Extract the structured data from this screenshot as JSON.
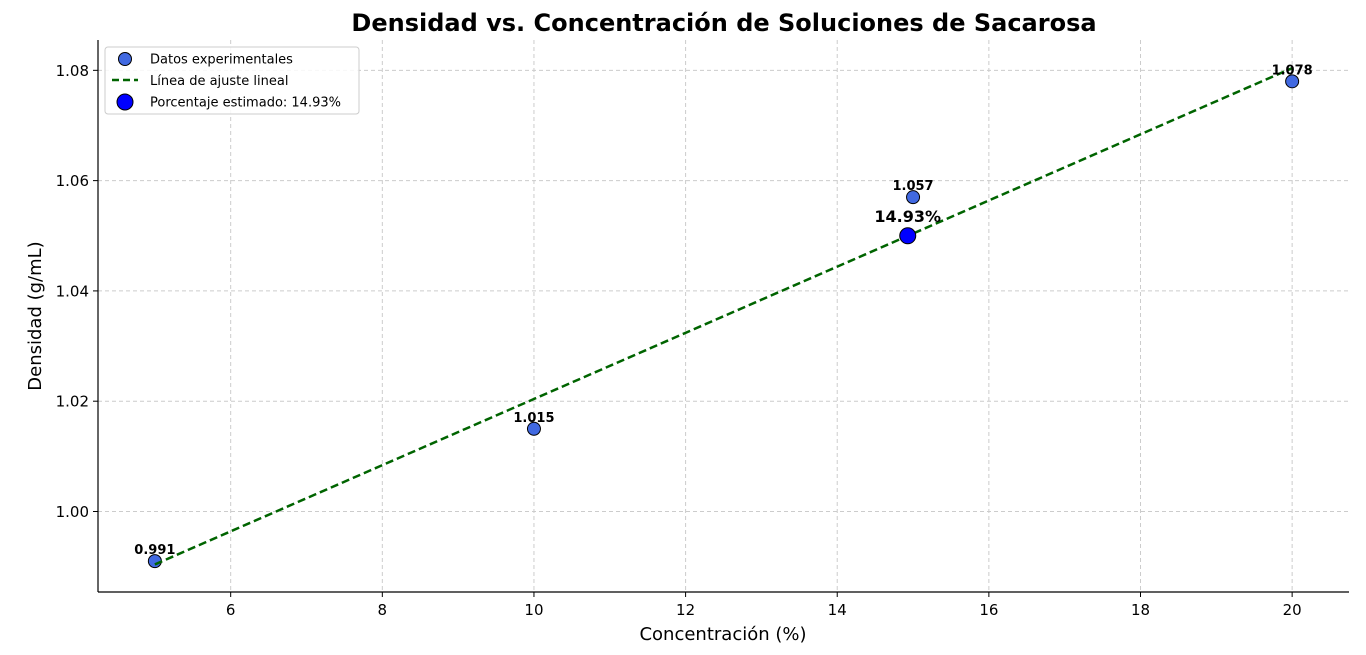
{
  "chart_data": {
    "type": "scatter",
    "title": "Densidad vs. Concentración de Soluciones de Sacarosa",
    "xlabel": "Concentración (%)",
    "ylabel": "Densidad (g/mL)",
    "xlim": [
      4.25,
      20.75
    ],
    "ylim": [
      0.9854,
      1.0855
    ],
    "xticks": [
      6,
      8,
      10,
      12,
      14,
      16,
      18,
      20
    ],
    "xtick_labels": [
      "6",
      "8",
      "10",
      "12",
      "14",
      "16",
      "18",
      "20"
    ],
    "yticks": [
      1.0,
      1.02,
      1.04,
      1.06,
      1.08
    ],
    "ytick_labels": [
      "1.00",
      "1.02",
      "1.04",
      "1.06",
      "1.08"
    ],
    "grid": true,
    "legend_position": "top-left",
    "series": [
      {
        "name": "Datos experimentales",
        "kind": "scatter",
        "color": "#4169e1",
        "x": [
          5,
          10,
          15,
          20
        ],
        "y": [
          0.991,
          1.015,
          1.057,
          1.078
        ],
        "labels": [
          "0.991",
          "1.015",
          "1.057",
          "1.078"
        ]
      },
      {
        "name": "Línea de ajuste lineal",
        "kind": "line",
        "style": "dashed",
        "color": "#006400",
        "x": [
          5,
          20
        ],
        "y": [
          0.9904,
          1.0804
        ]
      },
      {
        "name": "Porcentaje estimado: 14.93%",
        "kind": "scatter",
        "color": "#0000ff",
        "x": [
          14.93
        ],
        "y": [
          1.05
        ],
        "labels": [
          "14.93%"
        ]
      }
    ]
  }
}
